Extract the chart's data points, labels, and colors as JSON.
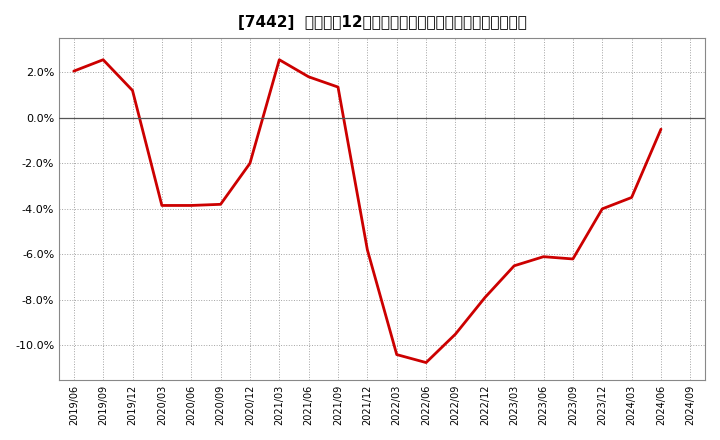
{
  "title": "[7442]  売上高の12か月移動合計の対前年同期増減率の推移",
  "line_color": "#cc0000",
  "background_color": "#ffffff",
  "plot_bg_color": "#ffffff",
  "grid_color": "#999999",
  "zero_line_color": "#555555",
  "x_labels": [
    "2019/06",
    "2019/09",
    "2019/12",
    "2020/03",
    "2020/06",
    "2020/09",
    "2020/12",
    "2021/03",
    "2021/06",
    "2021/09",
    "2021/12",
    "2022/03",
    "2022/06",
    "2022/09",
    "2022/12",
    "2023/03",
    "2023/06",
    "2023/09",
    "2023/12",
    "2024/03",
    "2024/06",
    "2024/09"
  ],
  "y_values": [
    2.05,
    2.55,
    1.2,
    -3.85,
    -3.85,
    -3.8,
    -2.0,
    2.55,
    1.8,
    1.35,
    -5.8,
    -10.4,
    -10.75,
    -9.5,
    -7.9,
    -6.5,
    -6.1,
    -6.2,
    -4.0,
    -3.5,
    -0.5,
    null
  ],
  "ylim": [
    -11.5,
    3.5
  ],
  "yticks": [
    2.0,
    0.0,
    -2.0,
    -4.0,
    -6.0,
    -8.0,
    -10.0
  ],
  "figsize": [
    7.2,
    4.4
  ],
  "dpi": 100
}
